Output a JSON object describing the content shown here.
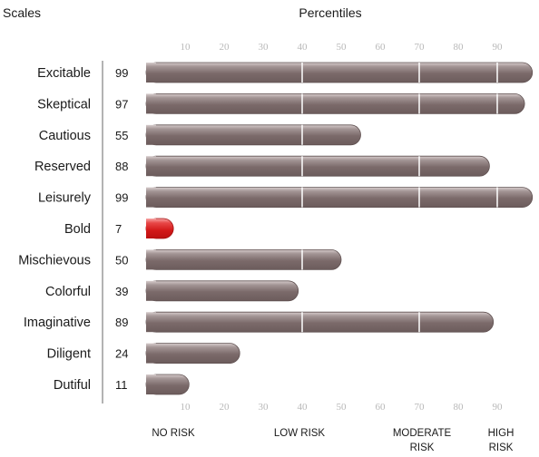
{
  "header": {
    "scales_label": "Scales",
    "percentiles_label": "Percentiles"
  },
  "chart_data": {
    "type": "bar",
    "orientation": "horizontal",
    "categories": [
      "Excitable",
      "Skeptical",
      "Cautious",
      "Reserved",
      "Leisurely",
      "Bold",
      "Mischievous",
      "Colorful",
      "Imaginative",
      "Diligent",
      "Dutiful"
    ],
    "values": [
      99,
      97,
      55,
      88,
      99,
      7,
      50,
      39,
      89,
      24,
      11
    ],
    "value_labels": [
      "99",
      "97",
      "55",
      "88",
      "99",
      "7",
      "50",
      "39",
      "89",
      "24",
      "11"
    ],
    "x_ticks": [
      "10",
      "20",
      "30",
      "40",
      "50",
      "60",
      "70",
      "80",
      "90"
    ],
    "xlim": [
      0,
      100
    ],
    "separator_lines_at": [
      40,
      70,
      90
    ],
    "risk_bands": [
      {
        "label_lines": [
          "NO RISK"
        ]
      },
      {
        "label_lines": [
          "LOW RISK"
        ]
      },
      {
        "label_lines": [
          "MODERATE",
          "RISK"
        ]
      },
      {
        "label_lines": [
          "HIGH",
          "RISK"
        ]
      }
    ],
    "colors": {
      "bar": "#7e6e6e",
      "bar_highlight": "#d81b1b",
      "tick_text": "#b8b8b8",
      "axis": "#9a9a9a"
    }
  }
}
